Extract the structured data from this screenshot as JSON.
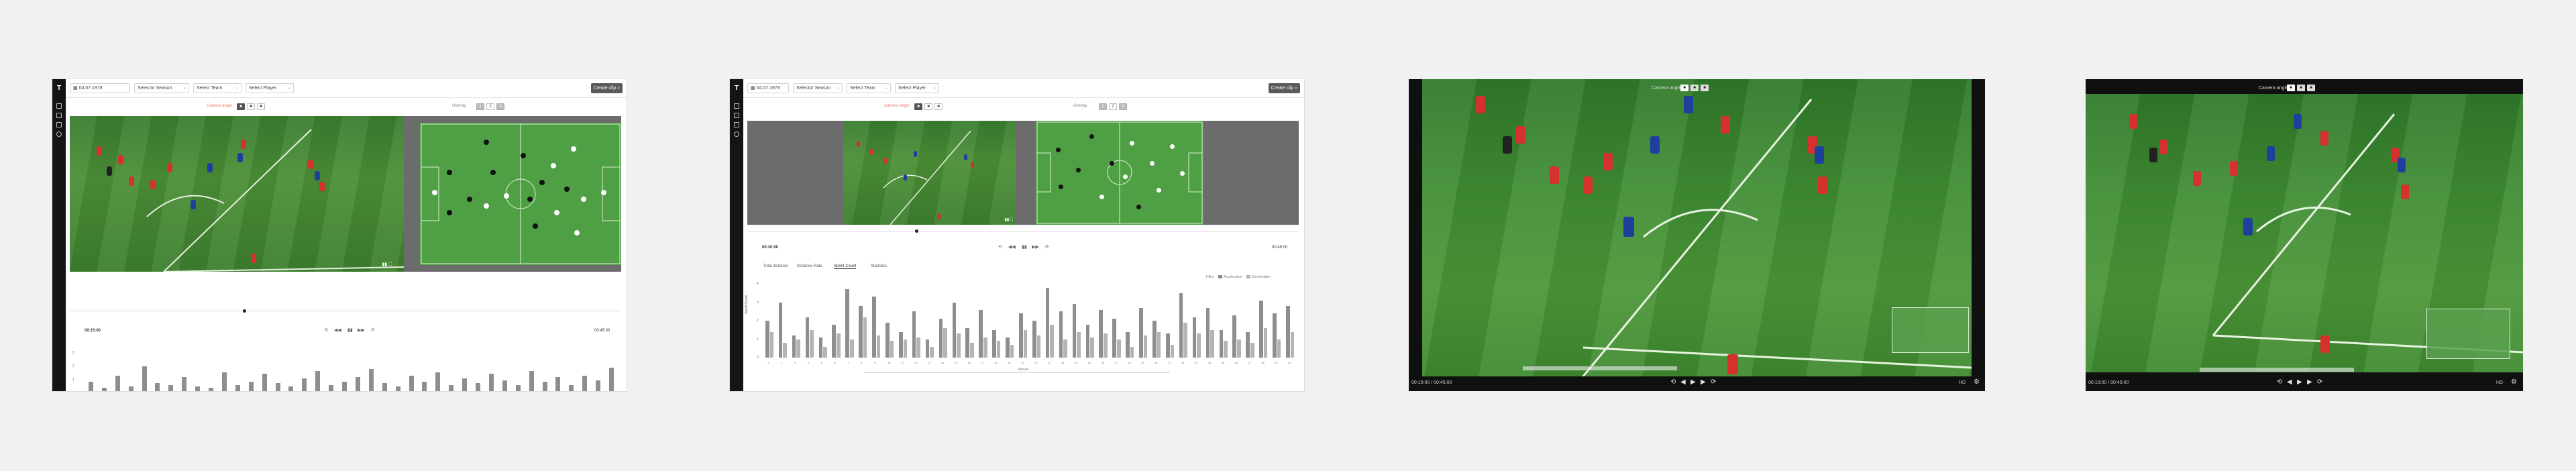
{
  "panels": {
    "p1": {
      "logo": "T",
      "toolbar": {
        "date": "04.07.1978",
        "season": "Selector Season",
        "team": "Select Team",
        "player": "Select Player",
        "create_btn": "Create clip"
      },
      "camera_label": "Camera angle",
      "cam_options": [
        "■",
        "■",
        "■"
      ],
      "overlay_label": "Overlay",
      "overlay_options": [
        "1",
        "2",
        "3"
      ],
      "time_current": "00:15:00",
      "time_total": "00:45:00",
      "y_ticks": [
        "3",
        "2",
        "1",
        "0"
      ]
    },
    "p2": {
      "logo": "T",
      "toolbar": {
        "date": "04.07.1978",
        "season": "Selector Season",
        "team": "Select Team",
        "player": "Select Player",
        "create_btn": "Create clip"
      },
      "camera_label": "Camera angle",
      "cam_options": [
        "■",
        "■",
        "■"
      ],
      "overlay_label": "Overlay",
      "overlay_options": [
        "1",
        "2",
        "3"
      ],
      "time_current": "00:30:00",
      "time_total": "00:45:00",
      "tabs": [
        "Total distance",
        "Distance Rate",
        "Sprint Count",
        "Statistics"
      ],
      "active_tab": 2,
      "legend": [
        "Hi/Lo",
        "Acceleration",
        "Deceleration"
      ],
      "y_ticks": [
        "4",
        "3",
        "2",
        "1",
        "0"
      ],
      "x_ticks": [
        "1",
        "2",
        "3",
        "4",
        "5",
        "6",
        "7",
        "8",
        "9",
        "10",
        "11",
        "12",
        "13",
        "14",
        "15",
        "16",
        "17",
        "18",
        "19",
        "20",
        "21",
        "22",
        "23",
        "24",
        "25",
        "26",
        "27",
        "28",
        "29",
        "30",
        "31",
        "32",
        "33",
        "34",
        "35",
        "36",
        "37",
        "38",
        "39",
        "40"
      ],
      "x_label": "Minute",
      "y_label": "Sprint Count"
    },
    "p3": {
      "camera_label": "Camera angle",
      "cam_options": [
        "■",
        "■",
        "■"
      ],
      "time": "00:10:00 / 00:45:00",
      "quality": "HD"
    },
    "p4": {
      "camera_label": "Camera angle",
      "cam_options": [
        "■",
        "■",
        "■"
      ],
      "time": "00:10:00 / 00:45:00",
      "quality": "HD"
    }
  },
  "colors": {
    "accent": "#e8836a",
    "home": "#d5312d",
    "away": "#1f3f9c",
    "pitch": "#4a9c3f"
  },
  "chart_data": [
    {
      "type": "bar",
      "title": "",
      "y_ticks": [
        "3",
        "2",
        "1",
        "0"
      ],
      "values": [
        0.6,
        0.2,
        1.0,
        0.3,
        1.6,
        0.5,
        0.4,
        0.9,
        0.3,
        0.2,
        1.2,
        0.4,
        0.6,
        1.1,
        0.5,
        0.3,
        0.8,
        1.3,
        0.4,
        0.6,
        0.9,
        1.4,
        0.5,
        0.3,
        1.0,
        0.6,
        1.2,
        0.4,
        0.8,
        0.5,
        1.1,
        0.7,
        0.4,
        1.3,
        0.6,
        0.9,
        0.4,
        1.0,
        0.7,
        1.5
      ]
    },
    {
      "type": "bar",
      "title": "",
      "xlabel": "Minute",
      "ylabel": "Sprint Count",
      "ylim": [
        0,
        4
      ],
      "series": [
        {
          "name": "Acceleration",
          "values": [
            2.0,
            3.0,
            1.2,
            2.2,
            1.1,
            1.8,
            3.7,
            2.8,
            3.3,
            1.9,
            1.4,
            2.5,
            1.0,
            2.1,
            3.0,
            1.6,
            2.6,
            1.5,
            1.1,
            2.4,
            2.0,
            3.8,
            2.5,
            2.9,
            1.8,
            2.6,
            2.1,
            1.4,
            2.7,
            2.0,
            1.3,
            3.5,
            2.2,
            2.7,
            1.5,
            2.3,
            1.4,
            3.1,
            2.4,
            2.8
          ]
        },
        {
          "name": "Deceleration",
          "values": [
            1.4,
            0.8,
            1.0,
            1.5,
            0.6,
            1.3,
            1.0,
            2.2,
            1.2,
            0.9,
            1.0,
            1.1,
            0.6,
            1.6,
            1.3,
            0.8,
            1.1,
            0.9,
            0.7,
            1.5,
            1.2,
            1.8,
            1.0,
            1.4,
            1.1,
            1.3,
            1.0,
            0.6,
            1.2,
            1.4,
            0.7,
            1.9,
            1.3,
            1.5,
            0.9,
            1.0,
            0.8,
            1.6,
            1.0,
            1.4
          ]
        }
      ]
    }
  ]
}
